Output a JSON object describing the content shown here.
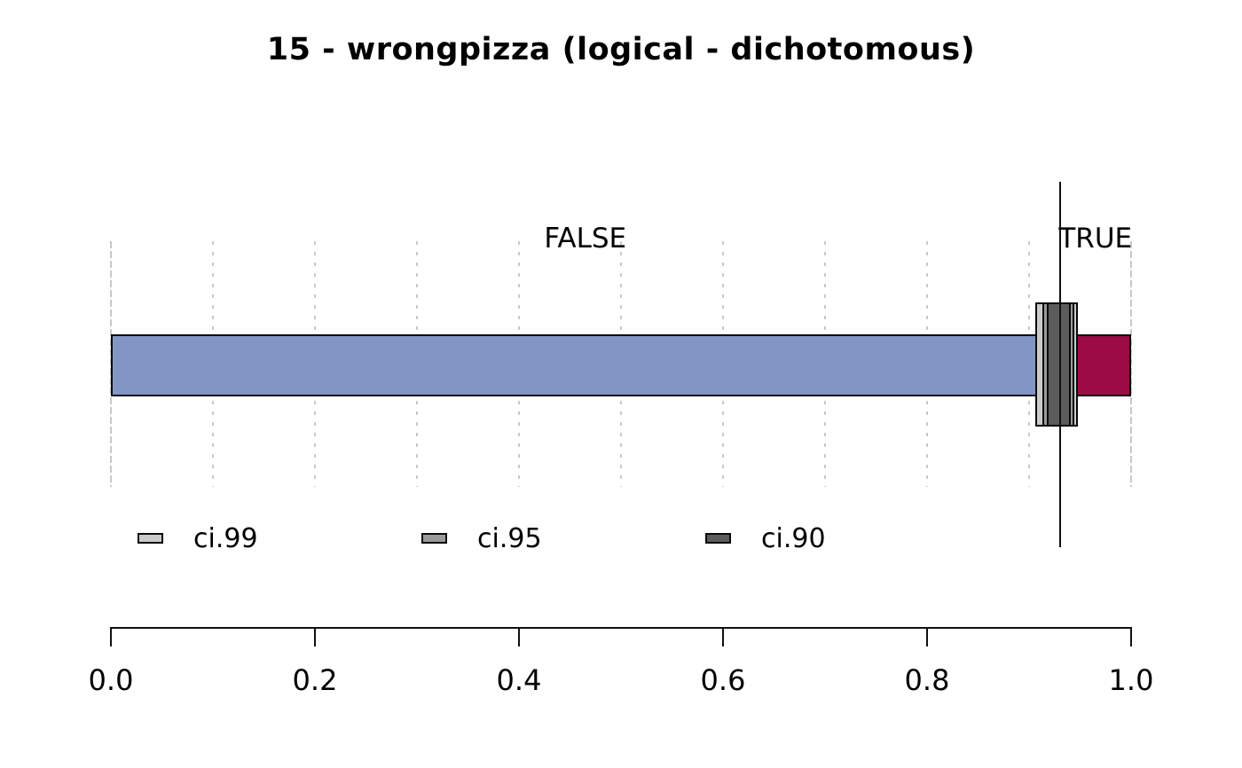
{
  "page": {
    "background": "#FFFFFF"
  },
  "chart_data": {
    "type": "bar",
    "subtype": "horizontal-stacked-proportion",
    "title": "15 - wrongpizza (logical - dichotomous)",
    "categories": [
      "FALSE",
      "TRUE"
    ],
    "values": [
      0.93,
      0.07
    ],
    "segment_colors": [
      "#8395C4",
      "#9B0C45"
    ],
    "point_estimate": 0.93,
    "estimate_line_color": "#111111",
    "confidence_intervals": [
      {
        "label": "ci.99",
        "low": 0.906,
        "high": 0.948,
        "color": "#CBCBCB"
      },
      {
        "label": "ci.95",
        "low": 0.913,
        "high": 0.944,
        "color": "#9A9A9A"
      },
      {
        "label": "ci.90",
        "low": 0.917,
        "high": 0.941,
        "color": "#5C5C5C"
      }
    ],
    "xlim": [
      0,
      1
    ],
    "x_ticks": [
      0.0,
      0.2,
      0.4,
      0.6,
      0.8,
      1.0
    ],
    "x_tick_labels": [
      "0.0",
      "0.2",
      "0.4",
      "0.6",
      "0.8",
      "1.0"
    ],
    "gridline_step": 0.1,
    "gridline_color": "#C8C8C8",
    "grid": true,
    "legend_position": "bottom"
  }
}
